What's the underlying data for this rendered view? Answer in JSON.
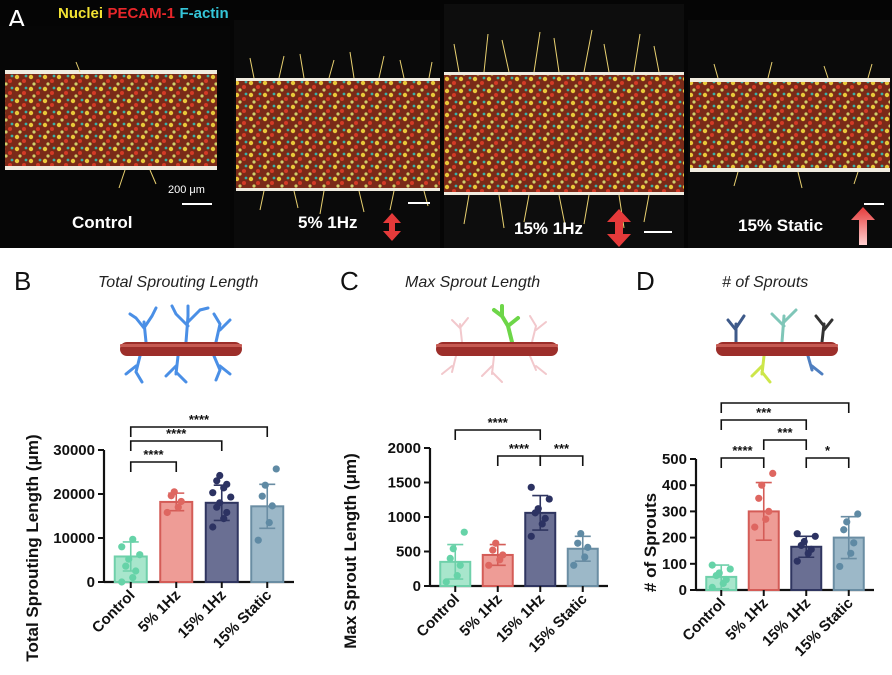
{
  "panel_a": {
    "letter": "A",
    "stains": [
      {
        "name": "Nuclei",
        "color": "#f2e233"
      },
      {
        "name": "PECAM-1",
        "color": "#e8262a"
      },
      {
        "name": "F-actin",
        "color": "#35c6d9"
      }
    ],
    "conditions": [
      "Control",
      "5% 1Hz",
      "15% 1Hz",
      "15% Static"
    ],
    "scale_bar_label": "200 μm"
  },
  "chart_data": [
    {
      "type": "bar",
      "panel": "B",
      "title": "Total Sprouting Length",
      "xlabel": "",
      "ylabel": "Total Sprouting Length (μm)",
      "categories": [
        "Control",
        "5% 1Hz",
        "15% 1Hz",
        "15% Static"
      ],
      "values": [
        5800,
        18200,
        18000,
        17200
      ],
      "errors": [
        3300,
        2000,
        4000,
        5000
      ],
      "colors": [
        "#a8e6cc",
        "#ee9c96",
        "#6a6f93",
        "#9cb8c8"
      ],
      "edge_colors": [
        "#6fd0aa",
        "#d45c57",
        "#2f3560",
        "#6a8da3"
      ],
      "dot_colors": [
        "#66d3a8",
        "#de6660",
        "#2c3262",
        "#5f8aa4"
      ],
      "points": [
        [
          0,
          1000,
          2500,
          3600,
          5200,
          6200,
          8000,
          9700
        ],
        [
          15800,
          17000,
          18300,
          19600,
          20500
        ],
        [
          12500,
          14400,
          15800,
          17000,
          18000,
          19300,
          20300,
          21400,
          22200,
          23000,
          24200
        ],
        [
          9500,
          13500,
          17300,
          19500,
          22000,
          25700
        ]
      ],
      "ylim": [
        0,
        30000
      ],
      "yticks": [
        0,
        10000,
        20000,
        30000
      ],
      "significance": [
        {
          "from": 0,
          "to": 1,
          "label": "****"
        },
        {
          "from": 0,
          "to": 2,
          "label": "****"
        },
        {
          "from": 0,
          "to": 3,
          "label": "****"
        }
      ]
    },
    {
      "type": "bar",
      "panel": "C",
      "title": "Max Sprout Length",
      "xlabel": "",
      "ylabel": "Max Sprout Length (μm)",
      "categories": [
        "Control",
        "5% 1Hz",
        "15% 1Hz",
        "15% Static"
      ],
      "values": [
        350,
        450,
        1060,
        540
      ],
      "errors": [
        250,
        150,
        250,
        180
      ],
      "colors": [
        "#a8e6cc",
        "#ee9c96",
        "#6a6f93",
        "#9cb8c8"
      ],
      "edge_colors": [
        "#6fd0aa",
        "#d45c57",
        "#2f3560",
        "#6a8da3"
      ],
      "dot_colors": [
        "#66d3a8",
        "#de6660",
        "#2c3262",
        "#5f8aa4"
      ],
      "points": [
        [
          60,
          150,
          300,
          400,
          540,
          780
        ],
        [
          300,
          380,
          450,
          520,
          620
        ],
        [
          720,
          900,
          980,
          1060,
          1120,
          1260,
          1430
        ],
        [
          300,
          420,
          560,
          620,
          760
        ]
      ],
      "ylim": [
        0,
        2000
      ],
      "yticks": [
        0,
        500,
        1000,
        1500,
        2000
      ],
      "significance": [
        {
          "from": 0,
          "to": 2,
          "label": "****"
        },
        {
          "from": 1,
          "to": 2,
          "label": "****"
        },
        {
          "from": 2,
          "to": 3,
          "label": "***"
        }
      ]
    },
    {
      "type": "bar",
      "panel": "D",
      "title": "# of Sprouts",
      "xlabel": "",
      "ylabel": "# of Sprouts",
      "categories": [
        "Control",
        "5% 1Hz",
        "15% 1Hz",
        "15% Static"
      ],
      "values": [
        50,
        300,
        165,
        200
      ],
      "errors": [
        45,
        110,
        40,
        80
      ],
      "colors": [
        "#a8e6cc",
        "#ee9c96",
        "#6a6f93",
        "#9cb8c8"
      ],
      "edge_colors": [
        "#6fd0aa",
        "#d45c57",
        "#2f3560",
        "#6a8da3"
      ],
      "dot_colors": [
        "#66d3a8",
        "#de6660",
        "#2c3262",
        "#5f8aa4"
      ],
      "points": [
        [
          10,
          25,
          40,
          55,
          65,
          80,
          95
        ],
        [
          240,
          270,
          300,
          350,
          400,
          445
        ],
        [
          110,
          140,
          155,
          170,
          185,
          205,
          215
        ],
        [
          90,
          140,
          180,
          230,
          260,
          290
        ]
      ],
      "ylim": [
        0,
        500
      ],
      "yticks": [
        0,
        100,
        200,
        300,
        400,
        500
      ],
      "significance": [
        {
          "from": 0,
          "to": 1,
          "label": "****"
        },
        {
          "from": 1,
          "to": 2,
          "label": "***"
        },
        {
          "from": 0,
          "to": 2,
          "label": "***"
        },
        {
          "from": 2,
          "to": 3,
          "label": "*"
        },
        {
          "from": 0,
          "to": 3,
          "label": "****"
        }
      ]
    }
  ]
}
